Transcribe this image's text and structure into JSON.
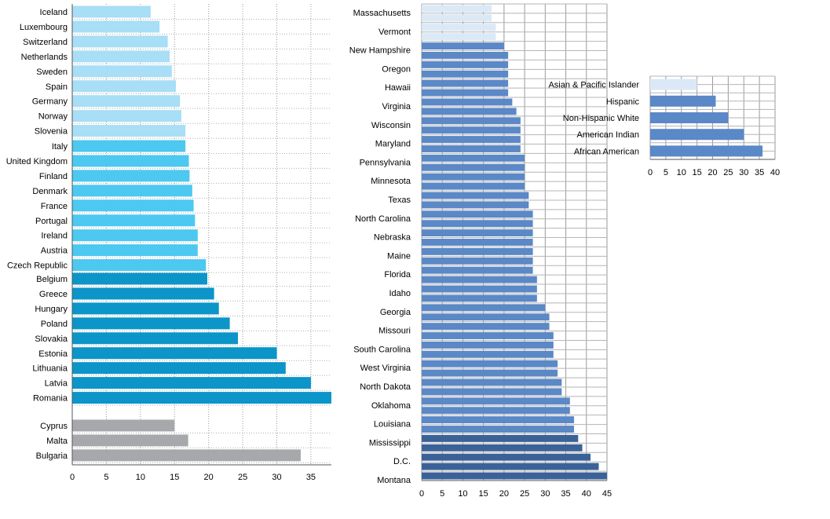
{
  "chart_data": [
    {
      "type": "bar",
      "orientation": "horizontal",
      "xlim": [
        0,
        38
      ],
      "xticks": [
        0,
        5,
        10,
        15,
        20,
        25,
        30,
        35
      ],
      "grid": "vertical-dotted",
      "groups": [
        {
          "color": "#a8def6",
          "categories": [
            "Iceland",
            "Luxembourg",
            "Switzerland",
            "Netherlands",
            "Sweden",
            "Spain",
            "Germany",
            "Norway",
            "Slovenia"
          ],
          "values": [
            11.5,
            12.8,
            14.0,
            14.3,
            14.6,
            15.2,
            15.8,
            16.0,
            16.6
          ]
        },
        {
          "color": "#4dc8f0",
          "categories": [
            "Italy",
            "United Kingdom",
            "Finland",
            "Denmark",
            "France",
            "Portugal",
            "Ireland",
            "Austria",
            "Czech Republic"
          ],
          "values": [
            16.6,
            17.1,
            17.2,
            17.6,
            17.8,
            18.0,
            18.4,
            18.4,
            19.6
          ]
        },
        {
          "color": "#0b95c8",
          "categories": [
            "Belgium",
            "Greece",
            "Hungary",
            "Poland",
            "Slovakia",
            "Estonia",
            "Lithuania",
            "Latvia",
            "Romania"
          ],
          "values": [
            19.8,
            20.8,
            21.5,
            23.1,
            24.3,
            30.0,
            31.3,
            35.0,
            38.0
          ]
        },
        {
          "color": "#a6a8ab",
          "categories": [
            "Cyprus",
            "Malta",
            "Bulgaria"
          ],
          "values": [
            15.0,
            17.0,
            33.5
          ]
        }
      ]
    },
    {
      "type": "bar",
      "orientation": "horizontal",
      "xlim": [
        0,
        45
      ],
      "xticks": [
        0,
        5,
        10,
        15,
        20,
        25,
        30,
        35,
        40,
        45
      ],
      "grid": "full",
      "labels_every_other": true,
      "categories": [
        "Massachusetts",
        "",
        "Vermont",
        "",
        "New Hampshire",
        "",
        "Oregon",
        "",
        "Hawaii",
        "",
        "Virginia",
        "",
        "Wisconsin",
        "",
        "Maryland",
        "",
        "Pennsylvania",
        "",
        "Minnesota",
        "",
        "Texas",
        "",
        "North Carolina",
        "",
        "Nebraska",
        "",
        "Maine",
        "",
        "Florida",
        "",
        "Idaho",
        "",
        "Georgia",
        "",
        "Missouri",
        "",
        "South Carolina",
        "",
        "West Virginia",
        "",
        "North Dakota",
        "",
        "Oklahoma",
        "",
        "Louisiana",
        "",
        "Mississippi",
        "",
        "D.C.",
        "",
        "Montana"
      ],
      "values": [
        17,
        17,
        18,
        18,
        20,
        21,
        21,
        21,
        21,
        21,
        22,
        23,
        24,
        24,
        24,
        24,
        25,
        25,
        25,
        25,
        26,
        26,
        27,
        27,
        27,
        27,
        27,
        27,
        27,
        28,
        28,
        28,
        30,
        31,
        31,
        32,
        32,
        32,
        33,
        33,
        34,
        34,
        36,
        36,
        37,
        37,
        38,
        39,
        41,
        43,
        45
      ],
      "colors": {
        "light": "#dbe9f7",
        "mid": "#5b88c6",
        "dark": "#3b6298"
      }
    },
    {
      "type": "bar",
      "orientation": "horizontal",
      "xlim": [
        0,
        40
      ],
      "xticks": [
        0,
        5,
        10,
        15,
        20,
        25,
        30,
        35,
        40
      ],
      "grid": "full",
      "categories": [
        "Asian & Pacific Islander",
        "Hispanic",
        "Non-Hispanic White",
        "American Indian",
        "African American"
      ],
      "values": [
        15,
        21,
        25,
        30,
        36
      ],
      "colors": [
        "#dbe9f7",
        "#5b88c6",
        "#5b88c6",
        "#5b88c6",
        "#5b88c6"
      ]
    }
  ]
}
